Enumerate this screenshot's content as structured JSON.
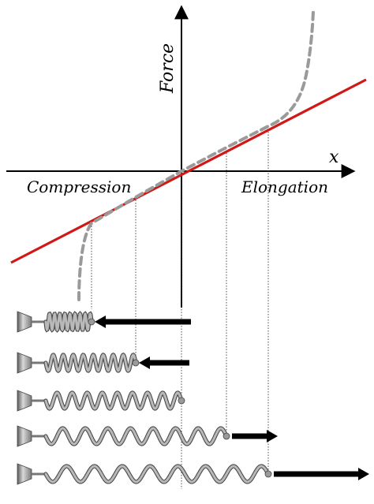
{
  "labels": {
    "y_axis": "Force",
    "x_axis": "x",
    "left_region": "Compression",
    "right_region": "Elongation"
  },
  "colors": {
    "linear_line": "#d01818",
    "nonlinear_curve": "#9a9a9a",
    "axis": "#000000",
    "spring_metal": "#8a8a8a",
    "arrow": "#000000"
  },
  "springs": [
    {
      "state": "strongly compressed",
      "force_direction": "left"
    },
    {
      "state": "compressed",
      "force_direction": "left"
    },
    {
      "state": "rest",
      "force_direction": "none"
    },
    {
      "state": "stretched",
      "force_direction": "right"
    },
    {
      "state": "strongly stretched",
      "force_direction": "right"
    }
  ]
}
